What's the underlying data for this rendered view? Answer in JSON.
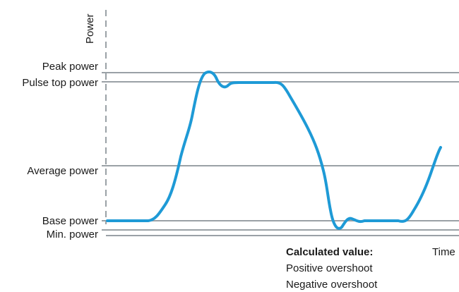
{
  "diagram": {
    "axes": {
      "y_label": "Power",
      "x_label": "Time"
    },
    "levels": [
      {
        "key": "peak",
        "label": "Peak power"
      },
      {
        "key": "pulse_top",
        "label": "Pulse top power"
      },
      {
        "key": "average",
        "label": "Average power"
      },
      {
        "key": "base",
        "label": "Base power"
      },
      {
        "key": "min",
        "label": "Min. power"
      }
    ],
    "calculated": {
      "heading": "Calculated value:",
      "items": [
        "Positive overshoot",
        "Negative overshoot"
      ]
    },
    "colors": {
      "signal": "#1e9ad6",
      "level_line": "#9aa1a6",
      "axis": "#9aa1a6",
      "text": "#1a1a1a"
    }
  }
}
